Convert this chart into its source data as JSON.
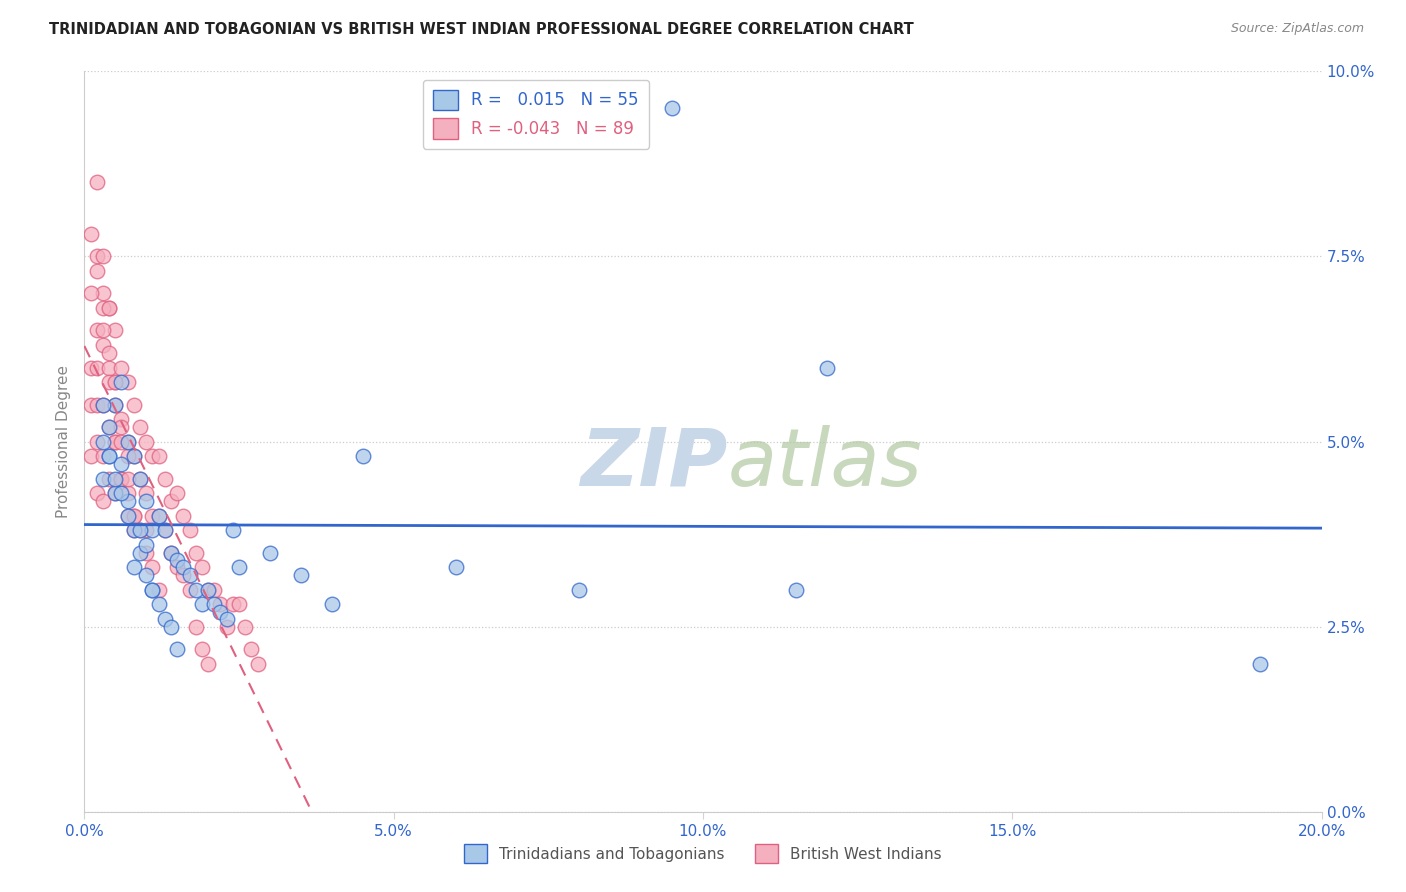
{
  "title": "TRINIDADIAN AND TOBAGONIAN VS BRITISH WEST INDIAN PROFESSIONAL DEGREE CORRELATION CHART",
  "source": "Source: ZipAtlas.com",
  "ylabel": "Professional Degree",
  "legend_labels": [
    "Trinidadians and Tobagonians",
    "British West Indians"
  ],
  "blue_R": "0.015",
  "blue_N": "55",
  "pink_R": "-0.043",
  "pink_N": "89",
  "blue_color": "#a8c8e8",
  "pink_color": "#f5b0c0",
  "blue_line_color": "#3366cc",
  "pink_line_color": "#e06080",
  "watermark_color": "#c8d8e8",
  "xlim": [
    0.0,
    0.2
  ],
  "ylim": [
    0.0,
    0.1
  ],
  "xticks": [
    0.0,
    0.05,
    0.1,
    0.15,
    0.2
  ],
  "yticks": [
    0.0,
    0.025,
    0.05,
    0.075,
    0.1
  ],
  "blue_x": [
    0.003,
    0.003,
    0.004,
    0.004,
    0.005,
    0.005,
    0.006,
    0.006,
    0.007,
    0.007,
    0.008,
    0.008,
    0.009,
    0.009,
    0.01,
    0.01,
    0.011,
    0.011,
    0.012,
    0.013,
    0.014,
    0.015,
    0.016,
    0.017,
    0.018,
    0.019,
    0.02,
    0.021,
    0.022,
    0.023,
    0.024,
    0.025,
    0.003,
    0.004,
    0.005,
    0.006,
    0.007,
    0.008,
    0.009,
    0.01,
    0.011,
    0.012,
    0.013,
    0.014,
    0.015,
    0.03,
    0.035,
    0.04,
    0.045,
    0.06,
    0.08,
    0.095,
    0.115,
    0.19,
    0.12
  ],
  "blue_y": [
    0.05,
    0.045,
    0.052,
    0.048,
    0.055,
    0.043,
    0.058,
    0.047,
    0.05,
    0.042,
    0.048,
    0.038,
    0.045,
    0.035,
    0.042,
    0.032,
    0.038,
    0.03,
    0.04,
    0.038,
    0.035,
    0.034,
    0.033,
    0.032,
    0.03,
    0.028,
    0.03,
    0.028,
    0.027,
    0.026,
    0.038,
    0.033,
    0.055,
    0.048,
    0.045,
    0.043,
    0.04,
    0.033,
    0.038,
    0.036,
    0.03,
    0.028,
    0.026,
    0.025,
    0.022,
    0.035,
    0.032,
    0.028,
    0.048,
    0.033,
    0.03,
    0.095,
    0.03,
    0.02,
    0.06
  ],
  "pink_x": [
    0.001,
    0.001,
    0.001,
    0.002,
    0.002,
    0.002,
    0.002,
    0.002,
    0.003,
    0.003,
    0.003,
    0.003,
    0.003,
    0.004,
    0.004,
    0.004,
    0.004,
    0.005,
    0.005,
    0.005,
    0.005,
    0.006,
    0.006,
    0.006,
    0.007,
    0.007,
    0.007,
    0.008,
    0.008,
    0.008,
    0.009,
    0.009,
    0.01,
    0.01,
    0.01,
    0.011,
    0.011,
    0.012,
    0.012,
    0.013,
    0.013,
    0.014,
    0.014,
    0.015,
    0.015,
    0.016,
    0.016,
    0.017,
    0.018,
    0.019,
    0.02,
    0.021,
    0.022,
    0.023,
    0.024,
    0.025,
    0.026,
    0.027,
    0.028,
    0.002,
    0.002,
    0.003,
    0.003,
    0.004,
    0.004,
    0.005,
    0.005,
    0.006,
    0.006,
    0.007,
    0.007,
    0.008,
    0.001,
    0.001,
    0.002,
    0.003,
    0.004,
    0.005,
    0.006,
    0.007,
    0.008,
    0.009,
    0.01,
    0.011,
    0.012,
    0.017,
    0.018,
    0.019,
    0.02
  ],
  "pink_y": [
    0.06,
    0.055,
    0.048,
    0.065,
    0.06,
    0.055,
    0.05,
    0.043,
    0.07,
    0.063,
    0.055,
    0.048,
    0.042,
    0.068,
    0.06,
    0.052,
    0.045,
    0.065,
    0.058,
    0.05,
    0.043,
    0.06,
    0.053,
    0.045,
    0.058,
    0.05,
    0.043,
    0.055,
    0.048,
    0.04,
    0.052,
    0.045,
    0.05,
    0.043,
    0.038,
    0.048,
    0.04,
    0.048,
    0.04,
    0.045,
    0.038,
    0.042,
    0.035,
    0.043,
    0.033,
    0.04,
    0.032,
    0.038,
    0.035,
    0.033,
    0.03,
    0.03,
    0.028,
    0.025,
    0.028,
    0.028,
    0.025,
    0.022,
    0.02,
    0.085,
    0.075,
    0.075,
    0.068,
    0.068,
    0.058,
    0.058,
    0.05,
    0.052,
    0.045,
    0.048,
    0.04,
    0.038,
    0.078,
    0.07,
    0.073,
    0.065,
    0.062,
    0.055,
    0.05,
    0.045,
    0.04,
    0.038,
    0.035,
    0.033,
    0.03,
    0.03,
    0.025,
    0.022,
    0.02
  ]
}
